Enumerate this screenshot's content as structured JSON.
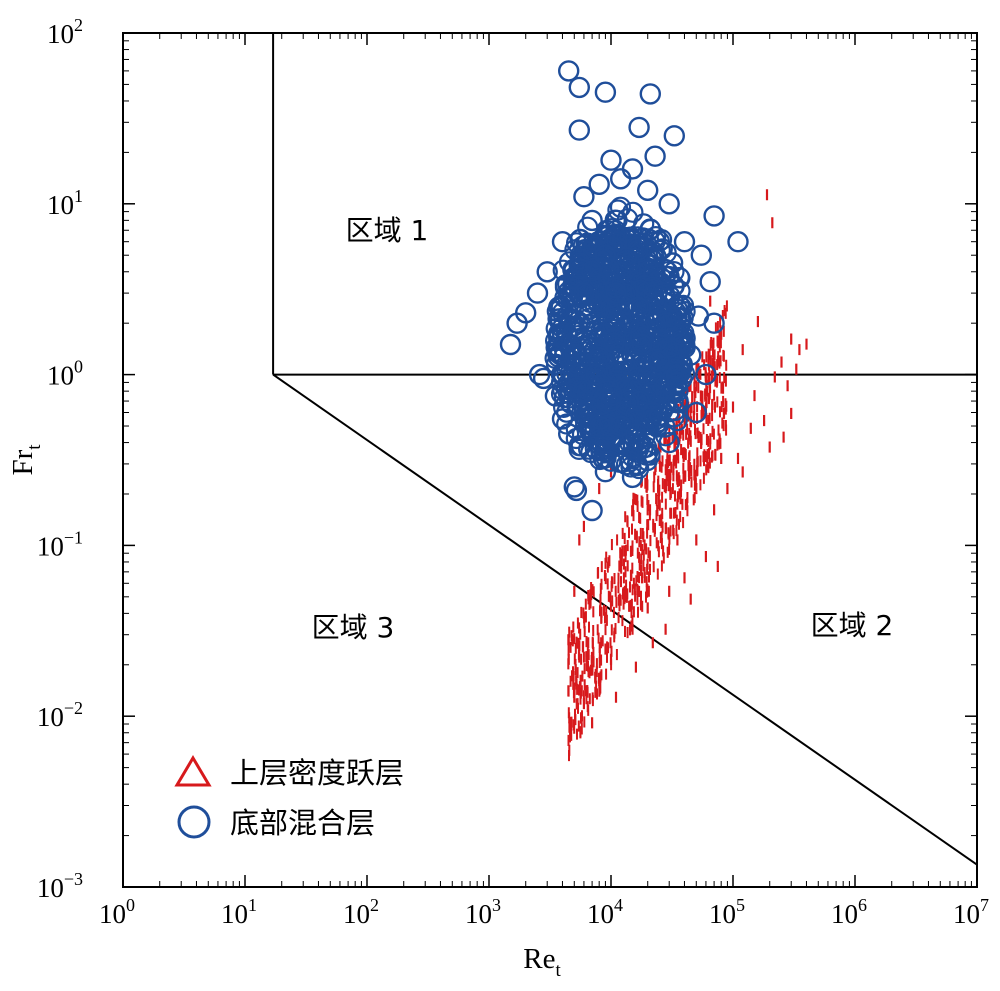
{
  "chart_data": {
    "type": "scatter",
    "xscale": "log",
    "yscale": "log",
    "xlim": [
      1,
      10000000
    ],
    "ylim": [
      0.001,
      100
    ],
    "xlabel": "Re",
    "xlabel_sub": "t",
    "ylabel": "Fr",
    "ylabel_sub": "t",
    "x_ticks": [
      {
        "base": "10",
        "exp": "0"
      },
      {
        "base": "10",
        "exp": "1"
      },
      {
        "base": "10",
        "exp": "2"
      },
      {
        "base": "10",
        "exp": "3"
      },
      {
        "base": "10",
        "exp": "4"
      },
      {
        "base": "10",
        "exp": "5"
      },
      {
        "base": "10",
        "exp": "6"
      },
      {
        "base": "10",
        "exp": "7"
      }
    ],
    "y_ticks": [
      {
        "base": "10",
        "exp": "−3"
      },
      {
        "base": "10",
        "exp": "−2"
      },
      {
        "base": "10",
        "exp": "−1"
      },
      {
        "base": "10",
        "exp": "0"
      },
      {
        "base": "10",
        "exp": "1"
      },
      {
        "base": "10",
        "exp": "2"
      }
    ],
    "region_labels": [
      "区域 1",
      "区域 2",
      "区域 3"
    ],
    "boundaries": [
      {
        "name": "vertical",
        "points": [
          [
            17,
            1
          ],
          [
            17,
            100
          ]
        ]
      },
      {
        "name": "horizontal",
        "points": [
          [
            17,
            1
          ],
          [
            10000000,
            1
          ]
        ]
      },
      {
        "name": "diagonal",
        "points": [
          [
            17,
            1
          ],
          [
            10000000,
            0.00135
          ]
        ]
      }
    ],
    "legend_position": "bottom-left",
    "series": [
      {
        "name": "上层密度跃层",
        "marker": "triangle",
        "color": "#d7191c",
        "points": [
          [
            190000,
            10.5
          ],
          [
            210000,
            7.2
          ],
          [
            160000,
            1.9
          ],
          [
            120000,
            1.3
          ],
          [
            300000,
            1.5
          ],
          [
            350000,
            1.3
          ],
          [
            400000,
            1.4
          ],
          [
            250000,
            1.1
          ],
          [
            330000,
            1.0
          ],
          [
            280000,
            0.8
          ],
          [
            300000,
            0.55
          ],
          [
            260000,
            0.4
          ],
          [
            200000,
            0.35
          ],
          [
            150000,
            0.7
          ],
          [
            100000,
            0.6
          ],
          [
            80000,
            0.3
          ],
          [
            70000,
            0.15
          ],
          [
            60000,
            0.08
          ],
          [
            50000,
            0.1
          ],
          [
            40000,
            0.06
          ],
          [
            30000,
            0.05
          ],
          [
            20000,
            0.04
          ],
          [
            15000,
            0.03
          ],
          [
            10000,
            0.02
          ],
          [
            8000,
            0.015
          ],
          [
            7000,
            0.0085
          ],
          [
            6000,
            0.011
          ],
          [
            5000,
            0.012
          ],
          [
            4500,
            0.02
          ],
          [
            5000,
            0.05
          ],
          [
            5500,
            0.1
          ],
          [
            6000,
            0.12
          ],
          [
            8000,
            0.2
          ],
          [
            10000,
            0.25
          ],
          [
            12000,
            0.08
          ],
          [
            20000,
            0.15
          ],
          [
            25000,
            0.3
          ],
          [
            40000,
            0.5
          ],
          [
            60000,
            0.9
          ],
          [
            80000,
            1.6
          ],
          [
            65000,
            2.5
          ],
          [
            50000,
            0.2
          ],
          [
            35000,
            0.1
          ],
          [
            18000,
            0.06
          ],
          [
            13000,
            0.05
          ],
          [
            9000,
            0.035
          ],
          [
            6500,
            0.025
          ],
          [
            4800,
            0.016
          ],
          [
            11000,
            0.012
          ],
          [
            16000,
            0.018
          ],
          [
            22000,
            0.025
          ],
          [
            28000,
            0.03
          ],
          [
            45000,
            0.045
          ],
          [
            90000,
            0.2
          ],
          [
            120000,
            0.25
          ],
          [
            180000,
            0.5
          ],
          [
            220000,
            0.9
          ],
          [
            140000,
            0.45
          ],
          [
            110000,
            0.3
          ],
          [
            75000,
            0.07
          ]
        ]
      },
      {
        "name": "底部混合层",
        "marker": "circle",
        "color": "#1f4e9a",
        "points": [
          [
            4500,
            60
          ],
          [
            5500,
            48
          ],
          [
            9000,
            45
          ],
          [
            21000,
            44
          ],
          [
            5500,
            27
          ],
          [
            17000,
            28
          ],
          [
            33000,
            25
          ],
          [
            23000,
            19
          ],
          [
            10000,
            18
          ],
          [
            15000,
            16
          ],
          [
            70000,
            8.5
          ],
          [
            110000,
            6
          ],
          [
            4000,
            6
          ],
          [
            3000,
            4
          ],
          [
            2500,
            3
          ],
          [
            2000,
            2.3
          ],
          [
            1700,
            2.0
          ],
          [
            1500,
            1.5
          ],
          [
            2600,
            1.0
          ],
          [
            2800,
            0.95
          ],
          [
            3500,
            0.75
          ],
          [
            4000,
            0.55
          ],
          [
            4500,
            0.45
          ],
          [
            5000,
            0.22
          ],
          [
            5200,
            0.21
          ],
          [
            7000,
            0.16
          ],
          [
            9000,
            0.27
          ],
          [
            15000,
            0.25
          ],
          [
            20000,
            0.35
          ],
          [
            30000,
            0.4
          ],
          [
            50000,
            0.6
          ],
          [
            60000,
            1.0
          ],
          [
            70000,
            2.0
          ],
          [
            65000,
            3.5
          ],
          [
            55000,
            5.0
          ],
          [
            40000,
            6.0
          ],
          [
            30000,
            10
          ],
          [
            20000,
            12
          ],
          [
            12000,
            14
          ],
          [
            8000,
            13
          ],
          [
            6000,
            11
          ],
          [
            7000,
            8
          ],
          [
            9000,
            5
          ],
          [
            11000,
            3
          ],
          [
            14000,
            2
          ],
          [
            18000,
            1.5
          ],
          [
            25000,
            1.2
          ],
          [
            35000,
            0.9
          ],
          [
            45000,
            1.3
          ],
          [
            52000,
            2.2
          ],
          [
            6000,
            3.0
          ],
          [
            5000,
            1.8
          ],
          [
            7500,
            1.0
          ],
          [
            10000,
            0.7
          ],
          [
            12000,
            0.5
          ],
          [
            16000,
            0.45
          ],
          [
            22000,
            0.6
          ],
          [
            28000,
            2.8
          ],
          [
            32000,
            4.5
          ],
          [
            3800,
            2.5
          ]
        ]
      }
    ]
  }
}
